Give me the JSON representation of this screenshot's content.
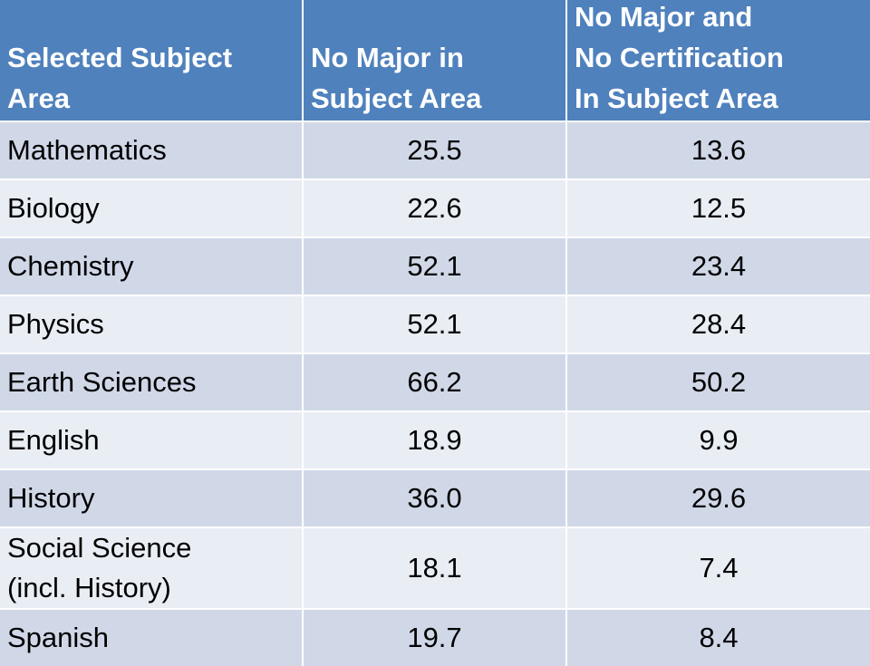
{
  "table": {
    "header": [
      [
        "Selected Subject",
        "Area"
      ],
      [
        "No Major in",
        "Subject Area"
      ],
      [
        "No Major and",
        "No Certification",
        "In Subject Area"
      ]
    ],
    "rows": [
      [
        [
          "Mathematics"
        ],
        "25.5",
        "13.6"
      ],
      [
        [
          "Biology"
        ],
        "22.6",
        "12.5"
      ],
      [
        [
          "Chemistry"
        ],
        "52.1",
        "23.4"
      ],
      [
        [
          "Physics"
        ],
        "52.1",
        "28.4"
      ],
      [
        [
          "Earth Sciences"
        ],
        "66.2",
        "50.2"
      ],
      [
        [
          "English"
        ],
        "18.9",
        "9.9"
      ],
      [
        [
          "History"
        ],
        "36.0",
        "29.6"
      ],
      [
        [
          "Social Science",
          "(incl. History)"
        ],
        "18.1",
        "7.4"
      ],
      [
        [
          "Spanish"
        ],
        "19.7",
        "8.4"
      ]
    ]
  }
}
